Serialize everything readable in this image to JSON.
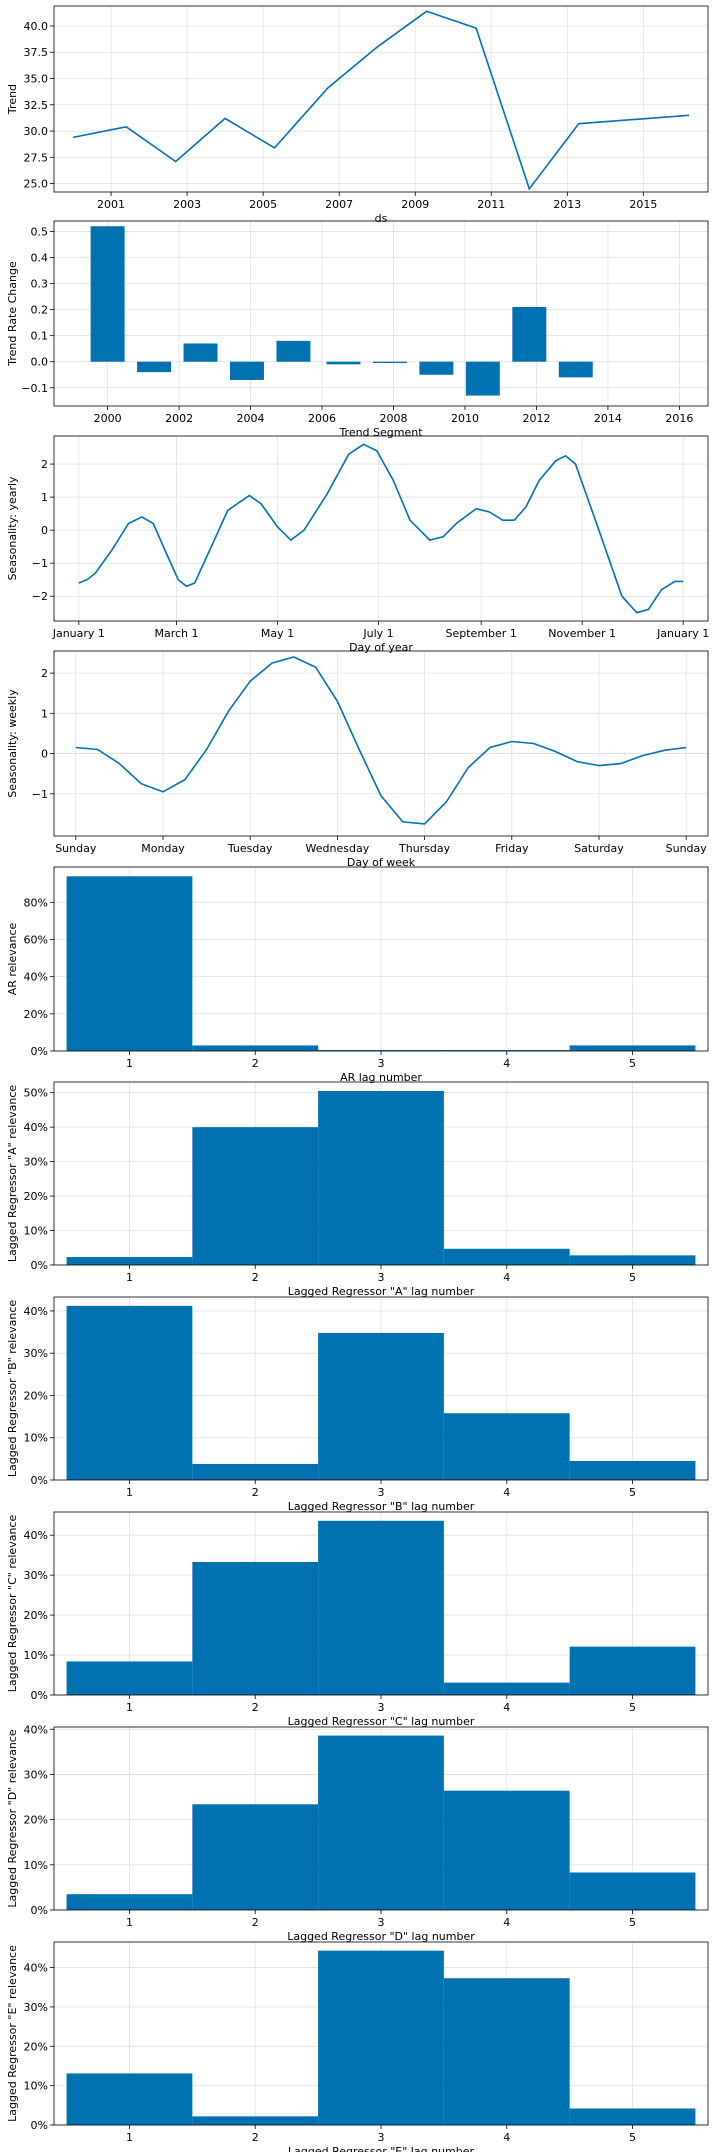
{
  "colors": {
    "series": "#0072B2",
    "grid": "#e1e1e1",
    "axes": "#000000"
  },
  "chart_data": [
    {
      "type": "line",
      "xlabel": "ds",
      "ylabel": "Trend",
      "xlim": [
        1999.5,
        2016.7
      ],
      "ylim": [
        24.2,
        41.9
      ],
      "grid": true,
      "xticks": [
        2001,
        2003,
        2005,
        2007,
        2009,
        2011,
        2013,
        2015
      ],
      "xtick_labels": [
        "2001",
        "2003",
        "2005",
        "2007",
        "2009",
        "2011",
        "2013",
        "2015"
      ],
      "yticks": [
        25.0,
        27.5,
        30.0,
        32.5,
        35.0,
        37.5,
        40.0
      ],
      "ytick_labels": [
        "25.0",
        "27.5",
        "30.0",
        "32.5",
        "35.0",
        "37.5",
        "40.0"
      ],
      "x": [
        2000.0,
        2001.4,
        2002.7,
        2004.0,
        2005.3,
        2006.7,
        2008.0,
        2009.3,
        2010.6,
        2012.0,
        2013.3,
        2016.2
      ],
      "y": [
        29.4,
        30.4,
        27.1,
        31.2,
        28.4,
        34.1,
        38.0,
        41.4,
        39.8,
        24.5,
        30.7,
        31.5
      ]
    },
    {
      "type": "bar",
      "xlabel": "Trend Segment",
      "ylabel": "Trend Rate Change",
      "xlim": [
        1998.5,
        2016.8
      ],
      "ylim": [
        -0.17,
        0.54
      ],
      "grid": true,
      "xticks": [
        2000,
        2002,
        2004,
        2006,
        2008,
        2010,
        2012,
        2014,
        2016
      ],
      "xtick_labels": [
        "2000",
        "2002",
        "2004",
        "2006",
        "2008",
        "2010",
        "2012",
        "2014",
        "2016"
      ],
      "yticks": [
        -0.1,
        0.0,
        0.1,
        0.2,
        0.3,
        0.4,
        0.5
      ],
      "ytick_labels": [
        "−0.1",
        "0.0",
        "0.1",
        "0.2",
        "0.3",
        "0.4",
        "0.5"
      ],
      "bar_width": 0.95,
      "x": [
        2000.0,
        2001.3,
        2002.6,
        2003.9,
        2005.2,
        2006.6,
        2007.9,
        2009.2,
        2010.5,
        2011.8,
        2013.1
      ],
      "values": [
        0.52,
        -0.04,
        0.07,
        -0.07,
        0.08,
        -0.01,
        -0.005,
        -0.05,
        -0.13,
        0.21,
        -0.06
      ]
    },
    {
      "type": "line",
      "xlabel": "Day of year",
      "ylabel": "Seasonality: yearly",
      "xlim": [
        -15,
        380
      ],
      "ylim": [
        -2.75,
        2.85
      ],
      "grid": true,
      "xticks": [
        0,
        59,
        120,
        181,
        243,
        304,
        365
      ],
      "xtick_labels": [
        "January 1",
        "March 1",
        "May 1",
        "July 1",
        "September 1",
        "November 1",
        "January 1"
      ],
      "yticks": [
        -2,
        -1,
        0,
        1,
        2
      ],
      "ytick_labels": [
        "−2",
        "−1",
        "0",
        "1",
        "2"
      ],
      "x": [
        0,
        5,
        10,
        20,
        30,
        38,
        45,
        52,
        60,
        65,
        70,
        80,
        90,
        103,
        110,
        120,
        128,
        136,
        150,
        163,
        172,
        180,
        190,
        200,
        212,
        220,
        228,
        240,
        248,
        256,
        263,
        270,
        278,
        288,
        294,
        300,
        312,
        328,
        337,
        344,
        352,
        360,
        365
      ],
      "y": [
        -1.6,
        -1.5,
        -1.3,
        -0.6,
        0.2,
        0.4,
        0.2,
        -0.6,
        -1.5,
        -1.7,
        -1.6,
        -0.5,
        0.6,
        1.05,
        0.8,
        0.1,
        -0.3,
        0.0,
        1.1,
        2.3,
        2.6,
        2.4,
        1.5,
        0.3,
        -0.3,
        -0.2,
        0.2,
        0.65,
        0.55,
        0.3,
        0.3,
        0.7,
        1.5,
        2.1,
        2.25,
        2.0,
        0.3,
        -2.0,
        -2.5,
        -2.4,
        -1.8,
        -1.55,
        -1.55
      ]
    },
    {
      "type": "line",
      "xlabel": "Day of week",
      "ylabel": "Seasonality: weekly",
      "xlim": [
        -0.25,
        7.25
      ],
      "ylim": [
        -2.05,
        2.55
      ],
      "grid": true,
      "xticks": [
        0,
        1,
        2,
        3,
        4,
        5,
        6,
        7
      ],
      "xtick_labels": [
        "Sunday",
        "Monday",
        "Tuesday",
        "Wednesday",
        "Thursday",
        "Friday",
        "Saturday",
        "Sunday"
      ],
      "yticks": [
        -1,
        0,
        1,
        2
      ],
      "ytick_labels": [
        "−1",
        "0",
        "1",
        "2"
      ],
      "x": [
        0,
        0.25,
        0.5,
        0.75,
        1.0,
        1.25,
        1.5,
        1.75,
        2.0,
        2.25,
        2.5,
        2.75,
        3.0,
        3.25,
        3.5,
        3.75,
        4.0,
        4.25,
        4.5,
        4.75,
        5.0,
        5.25,
        5.5,
        5.75,
        6.0,
        6.25,
        6.5,
        6.75,
        7.0
      ],
      "y": [
        0.15,
        0.1,
        -0.25,
        -0.75,
        -0.95,
        -0.65,
        0.1,
        1.05,
        1.8,
        2.25,
        2.4,
        2.15,
        1.3,
        0.1,
        -1.05,
        -1.7,
        -1.75,
        -1.2,
        -0.35,
        0.15,
        0.3,
        0.25,
        0.05,
        -0.2,
        -0.3,
        -0.25,
        -0.05,
        0.08,
        0.15
      ]
    },
    {
      "type": "bar",
      "xlabel": "AR lag number",
      "ylabel": "AR relevance",
      "categories": [
        1,
        2,
        3,
        4,
        5
      ],
      "values": [
        94.0,
        3.0,
        0.5,
        0.5,
        3.0
      ],
      "xlim": [
        0.4,
        5.6
      ],
      "ylim": [
        0,
        99
      ],
      "grid": true,
      "yticks": [
        0,
        20,
        40,
        60,
        80
      ],
      "ytick_labels": [
        "0%",
        "20%",
        "40%",
        "60%",
        "80%"
      ],
      "xtick_labels": [
        "1",
        "2",
        "3",
        "4",
        "5"
      ]
    },
    {
      "type": "bar",
      "xlabel": "Lagged Regressor \"A\" lag number",
      "ylabel": "Lagged Regressor \"A\" relevance",
      "categories": [
        1,
        2,
        3,
        4,
        5
      ],
      "values": [
        2.3,
        40.0,
        50.5,
        4.7,
        2.8
      ],
      "xlim": [
        0.4,
        5.6
      ],
      "ylim": [
        0,
        53.1
      ],
      "grid": true,
      "yticks": [
        0,
        10,
        20,
        30,
        40,
        50
      ],
      "ytick_labels": [
        "0%",
        "10%",
        "20%",
        "30%",
        "40%",
        "50%"
      ],
      "xtick_labels": [
        "1",
        "2",
        "3",
        "4",
        "5"
      ]
    },
    {
      "type": "bar",
      "xlabel": "Lagged Regressor \"B\" lag number",
      "ylabel": "Lagged Regressor \"B\" relevance",
      "categories": [
        1,
        2,
        3,
        4,
        5
      ],
      "values": [
        41.2,
        3.8,
        34.8,
        15.8,
        4.5
      ],
      "xlim": [
        0.4,
        5.6
      ],
      "ylim": [
        0,
        43.3
      ],
      "grid": true,
      "yticks": [
        0,
        10,
        20,
        30,
        40
      ],
      "ytick_labels": [
        "0%",
        "10%",
        "20%",
        "30%",
        "40%"
      ],
      "xtick_labels": [
        "1",
        "2",
        "3",
        "4",
        "5"
      ]
    },
    {
      "type": "bar",
      "xlabel": "Lagged Regressor \"C\" lag number",
      "ylabel": "Lagged Regressor \"C\" relevance",
      "categories": [
        1,
        2,
        3,
        4,
        5
      ],
      "values": [
        8.4,
        33.3,
        43.6,
        3.1,
        12.1
      ],
      "xlim": [
        0.4,
        5.6
      ],
      "ylim": [
        0,
        45.8
      ],
      "grid": true,
      "yticks": [
        0,
        10,
        20,
        30,
        40
      ],
      "ytick_labels": [
        "0%",
        "10%",
        "20%",
        "30%",
        "40%"
      ],
      "xtick_labels": [
        "1",
        "2",
        "3",
        "4",
        "5"
      ]
    },
    {
      "type": "bar",
      "xlabel": "Lagged Regressor \"D\" lag number",
      "ylabel": "Lagged Regressor \"D\" relevance",
      "categories": [
        1,
        2,
        3,
        4,
        5
      ],
      "values": [
        3.5,
        23.4,
        38.6,
        26.4,
        8.3
      ],
      "xlim": [
        0.4,
        5.6
      ],
      "ylim": [
        0,
        40.5
      ],
      "grid": true,
      "yticks": [
        0,
        10,
        20,
        30,
        40
      ],
      "ytick_labels": [
        "0%",
        "10%",
        "20%",
        "30%",
        "40%"
      ],
      "xtick_labels": [
        "1",
        "2",
        "3",
        "4",
        "5"
      ]
    },
    {
      "type": "bar",
      "xlabel": "Lagged Regressor \"E\" lag number",
      "ylabel": "Lagged Regressor \"E\" relevance",
      "categories": [
        1,
        2,
        3,
        4,
        5
      ],
      "values": [
        13.1,
        2.2,
        44.3,
        37.3,
        4.2
      ],
      "xlim": [
        0.4,
        5.6
      ],
      "ylim": [
        0,
        46.5
      ],
      "grid": true,
      "yticks": [
        0,
        10,
        20,
        30,
        40
      ],
      "ytick_labels": [
        "0%",
        "10%",
        "20%",
        "30%",
        "40%"
      ],
      "xtick_labels": [
        "1",
        "2",
        "3",
        "4",
        "5"
      ]
    }
  ]
}
